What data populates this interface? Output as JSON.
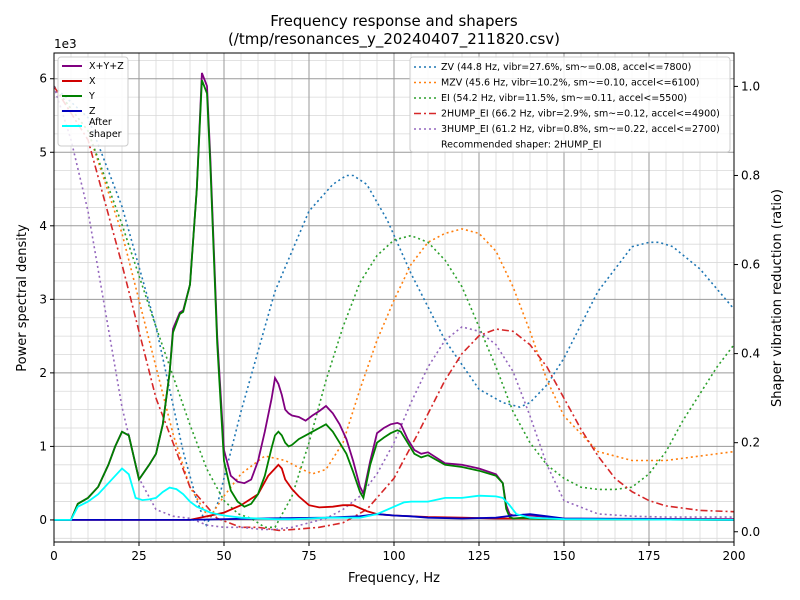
{
  "chart_data": {
    "type": "line",
    "title_line1": "Frequency response and shapers",
    "title_line2": "(/tmp/resonances_y_20240407_211820.csv)",
    "xlabel": "Frequency, Hz",
    "ylabel_left": "Power spectral density",
    "ylabel_right": "Shaper vibration reduction (ratio)",
    "y_left_multiplier": "1e3",
    "xlim": [
      0,
      200
    ],
    "ylim_left": [
      -0.3,
      6.35
    ],
    "ylim_right": [
      -0.023,
      1.075
    ],
    "grid": true,
    "x_ticks": [
      "0",
      "25",
      "50",
      "75",
      "100",
      "125",
      "150",
      "175",
      "200"
    ],
    "x_tick_values": [
      0,
      25,
      50,
      75,
      100,
      125,
      150,
      175,
      200
    ],
    "y_left_ticks": [
      "0",
      "1",
      "2",
      "3",
      "4",
      "5",
      "6"
    ],
    "y_left_tick_values": [
      0,
      1,
      2,
      3,
      4,
      5,
      6
    ],
    "y_right_ticks": [
      "0.0",
      "0.2",
      "0.4",
      "0.6",
      "0.8",
      "1.0"
    ],
    "y_right_tick_values": [
      0,
      0.2,
      0.4,
      0.6,
      0.8,
      1.0
    ],
    "legend_left_placement": "top-left",
    "legend_right_placement": "top-right",
    "recommended_text": "Recommended shaper: 2HUMP_EI",
    "psd_series": [
      {
        "name": "X+Y+Z",
        "color": "#800080",
        "x": [
          0,
          5,
          7,
          10,
          13,
          16,
          18,
          20,
          22,
          25,
          28,
          30,
          32,
          34,
          35,
          37,
          38,
          40,
          42,
          43.5,
          45,
          46,
          48,
          50,
          52,
          54,
          56,
          58,
          60,
          62,
          64,
          65,
          66,
          67,
          68,
          69,
          70,
          72,
          74,
          76,
          78,
          80,
          82,
          84,
          86,
          88,
          90,
          91,
          93,
          95,
          97,
          99,
          101,
          102,
          104,
          106,
          108,
          110,
          115,
          120,
          125,
          130,
          132,
          133,
          134,
          135,
          138,
          140,
          150,
          200
        ],
        "y": [
          0,
          0,
          0.22,
          0.3,
          0.45,
          0.75,
          1,
          1.2,
          1.15,
          0.55,
          0.75,
          0.9,
          1.3,
          2,
          2.6,
          2.82,
          2.85,
          3.2,
          4.5,
          6.08,
          5.9,
          4.9,
          2.5,
          0.95,
          0.6,
          0.52,
          0.5,
          0.55,
          0.8,
          1.2,
          1.65,
          1.93,
          1.85,
          1.7,
          1.5,
          1.45,
          1.42,
          1.4,
          1.35,
          1.42,
          1.48,
          1.55,
          1.45,
          1.3,
          1.1,
          0.8,
          0.45,
          0.36,
          0.8,
          1.18,
          1.25,
          1.3,
          1.32,
          1.3,
          1.1,
          0.95,
          0.9,
          0.92,
          0.77,
          0.75,
          0.7,
          0.62,
          0.5,
          0.2,
          0.08,
          0.06,
          0.07,
          0.06,
          0.02,
          0.01
        ]
      },
      {
        "name": "X",
        "color": "#d00000",
        "x": [
          0,
          20,
          30,
          40,
          45,
          50,
          55,
          60,
          63,
          65,
          66,
          67,
          68,
          70,
          72,
          75,
          78,
          82,
          85,
          88,
          92,
          95,
          100,
          110,
          120,
          130,
          140,
          150,
          200
        ],
        "y": [
          0,
          0,
          0,
          0,
          0.05,
          0.1,
          0.2,
          0.35,
          0.6,
          0.7,
          0.75,
          0.7,
          0.55,
          0.42,
          0.32,
          0.2,
          0.17,
          0.18,
          0.2,
          0.2,
          0.12,
          0.08,
          0.06,
          0.04,
          0.03,
          0.02,
          0.02,
          0.01,
          0
        ]
      },
      {
        "name": "Y",
        "color": "#008000",
        "x": [
          0,
          5,
          7,
          10,
          13,
          16,
          18,
          20,
          22,
          25,
          28,
          30,
          32,
          34,
          35,
          37,
          38,
          40,
          42,
          43.5,
          45,
          46,
          48,
          50,
          52,
          54,
          56,
          58,
          60,
          62,
          64,
          65,
          66,
          67,
          68,
          69,
          70,
          72,
          74,
          76,
          78,
          80,
          82,
          84,
          86,
          88,
          90,
          91,
          93,
          95,
          97,
          99,
          101,
          102,
          104,
          106,
          108,
          110,
          115,
          120,
          125,
          130,
          132,
          133,
          134,
          135,
          138,
          140,
          150,
          200
        ],
        "y": [
          0,
          0,
          0.22,
          0.3,
          0.45,
          0.75,
          1,
          1.2,
          1.15,
          0.55,
          0.75,
          0.9,
          1.3,
          2,
          2.55,
          2.8,
          2.83,
          3.2,
          4.5,
          5.98,
          5.8,
          4.8,
          2.4,
          0.8,
          0.4,
          0.25,
          0.18,
          0.22,
          0.35,
          0.6,
          0.98,
          1.15,
          1.2,
          1.15,
          1.05,
          1,
          1.02,
          1.1,
          1.15,
          1.2,
          1.25,
          1.3,
          1.2,
          1.05,
          0.9,
          0.65,
          0.38,
          0.3,
          0.75,
          1.05,
          1.12,
          1.18,
          1.22,
          1.2,
          1.05,
          0.9,
          0.85,
          0.88,
          0.75,
          0.72,
          0.67,
          0.6,
          0.5,
          0.15,
          0.04,
          0.02,
          0.03,
          0.02,
          0.01,
          0
        ]
      },
      {
        "name": "Z",
        "color": "#0000c0",
        "x": [
          0,
          20,
          40,
          60,
          80,
          90,
          95,
          100,
          105,
          110,
          120,
          130,
          135,
          140,
          145,
          150,
          200
        ],
        "y": [
          0,
          0,
          0,
          0.02,
          0.03,
          0.05,
          0.08,
          0.06,
          0.05,
          0.03,
          0.02,
          0.03,
          0.06,
          0.08,
          0.05,
          0.02,
          0
        ]
      },
      {
        "name": "After shaper",
        "color": "#00ffff",
        "x": [
          0,
          5,
          7,
          10,
          13,
          16,
          18,
          20,
          22,
          24,
          26,
          28,
          30,
          32,
          34,
          36,
          38,
          40,
          42,
          44,
          46,
          48,
          50,
          55,
          60,
          65,
          70,
          75,
          80,
          85,
          90,
          95,
          100,
          103,
          105,
          110,
          113,
          115,
          120,
          125,
          130,
          132,
          134,
          136,
          140,
          150,
          200
        ],
        "y": [
          0,
          0,
          0.18,
          0.25,
          0.35,
          0.5,
          0.6,
          0.7,
          0.62,
          0.3,
          0.27,
          0.28,
          0.3,
          0.38,
          0.44,
          0.42,
          0.35,
          0.25,
          0.18,
          0.14,
          0.1,
          0.08,
          0.06,
          0.03,
          0.02,
          0.01,
          0.01,
          0.02,
          0.03,
          0.03,
          0.03,
          0.08,
          0.18,
          0.24,
          0.25,
          0.25,
          0.28,
          0.3,
          0.3,
          0.33,
          0.32,
          0.3,
          0.2,
          0.08,
          0.03,
          0.01,
          0
        ]
      }
    ],
    "shaper_series": [
      {
        "name": "ZV (44.8 Hz, vibr=27.6%, sm~=0.08, accel<=7800)",
        "color": "#1f77b4",
        "dash": "2,3",
        "x": [
          0,
          10,
          20,
          30,
          38,
          42,
          44.8,
          48,
          55,
          65,
          75,
          82,
          86,
          88,
          92,
          98,
          105,
          115,
          125,
          132,
          137,
          140,
          145,
          150,
          160,
          170,
          175,
          178,
          182,
          190,
          200
        ],
        "y": [
          1,
          0.93,
          0.73,
          0.46,
          0.18,
          0.07,
          0.015,
          0.06,
          0.27,
          0.54,
          0.72,
          0.78,
          0.8,
          0.8,
          0.78,
          0.7,
          0.58,
          0.43,
          0.32,
          0.29,
          0.28,
          0.29,
          0.33,
          0.39,
          0.54,
          0.64,
          0.65,
          0.65,
          0.64,
          0.59,
          0.5
        ]
      },
      {
        "name": "MZV (45.6 Hz, vibr=10.2%, sm~=0.10, accel<=6100)",
        "color": "#ff7f0e",
        "dash": "2,3",
        "x": [
          0,
          10,
          20,
          28,
          35,
          40,
          45.6,
          50,
          55,
          62,
          68,
          73,
          76,
          80,
          85,
          90,
          95,
          100,
          105,
          110,
          115,
          120,
          125,
          130,
          135,
          140,
          145,
          150,
          160,
          170,
          180,
          190,
          200
        ],
        "y": [
          1,
          0.9,
          0.67,
          0.43,
          0.22,
          0.1,
          0.03,
          0.08,
          0.13,
          0.17,
          0.16,
          0.14,
          0.13,
          0.14,
          0.2,
          0.32,
          0.43,
          0.52,
          0.6,
          0.65,
          0.67,
          0.68,
          0.67,
          0.63,
          0.55,
          0.45,
          0.34,
          0.26,
          0.18,
          0.16,
          0.16,
          0.17,
          0.18
        ]
      },
      {
        "name": "EI (54.2 Hz, vibr=11.5%, sm~=0.11, accel<=5500)",
        "color": "#2ca02c",
        "dash": "2,3",
        "x": [
          0,
          10,
          20,
          30,
          40,
          45,
          50,
          54.2,
          58,
          62,
          65,
          70,
          75,
          80,
          85,
          90,
          95,
          100,
          105,
          110,
          115,
          120,
          125,
          130,
          135,
          140,
          145,
          150,
          155,
          160,
          165,
          170,
          175,
          180,
          185,
          190,
          195,
          200
        ],
        "y": [
          1,
          0.9,
          0.69,
          0.46,
          0.24,
          0.14,
          0.07,
          0.04,
          0.03,
          0.01,
          0.01,
          0.08,
          0.2,
          0.34,
          0.46,
          0.56,
          0.62,
          0.655,
          0.665,
          0.65,
          0.61,
          0.55,
          0.46,
          0.37,
          0.27,
          0.2,
          0.15,
          0.12,
          0.1,
          0.095,
          0.095,
          0.1,
          0.13,
          0.18,
          0.25,
          0.31,
          0.37,
          0.42
        ]
      },
      {
        "name": "2HUMP_EI (66.2 Hz, vibr=2.9%, sm~=0.12, accel<=4900)",
        "color": "#d62728",
        "dash": "7,3,2,3",
        "x": [
          0,
          10,
          20,
          30,
          40,
          48,
          55,
          60,
          66.2,
          72,
          78,
          85,
          92,
          100,
          107,
          115,
          120,
          125,
          130,
          135,
          140,
          145,
          150,
          155,
          160,
          165,
          170,
          175,
          180,
          190,
          200
        ],
        "y": [
          1,
          0.88,
          0.6,
          0.3,
          0.1,
          0.03,
          0.01,
          0.01,
          0.003,
          0.006,
          0.01,
          0.02,
          0.05,
          0.12,
          0.22,
          0.34,
          0.4,
          0.44,
          0.455,
          0.45,
          0.42,
          0.37,
          0.3,
          0.23,
          0.17,
          0.12,
          0.09,
          0.07,
          0.058,
          0.048,
          0.045
        ]
      },
      {
        "name": "3HUMP_EI (61.2 Hz, vibr=0.8%, sm~=0.22, accel<=2700)",
        "color": "#9467bd",
        "dash": "2,3",
        "x": [
          0,
          5,
          10,
          15,
          20,
          25,
          30,
          35,
          40,
          45,
          50,
          55,
          61.2,
          65,
          70,
          75,
          80,
          85,
          90,
          95,
          100,
          105,
          110,
          115,
          120,
          125,
          130,
          135,
          140,
          145,
          150,
          160,
          170,
          180,
          190,
          200
        ],
        "y": [
          1,
          0.88,
          0.72,
          0.5,
          0.28,
          0.12,
          0.05,
          0.035,
          0.03,
          0.015,
          0.01,
          0.01,
          0.005,
          0.005,
          0.01,
          0.02,
          0.03,
          0.05,
          0.08,
          0.13,
          0.2,
          0.29,
          0.37,
          0.43,
          0.46,
          0.45,
          0.42,
          0.36,
          0.26,
          0.15,
          0.07,
          0.04,
          0.035,
          0.033,
          0.033,
          0.033
        ]
      }
    ]
  }
}
